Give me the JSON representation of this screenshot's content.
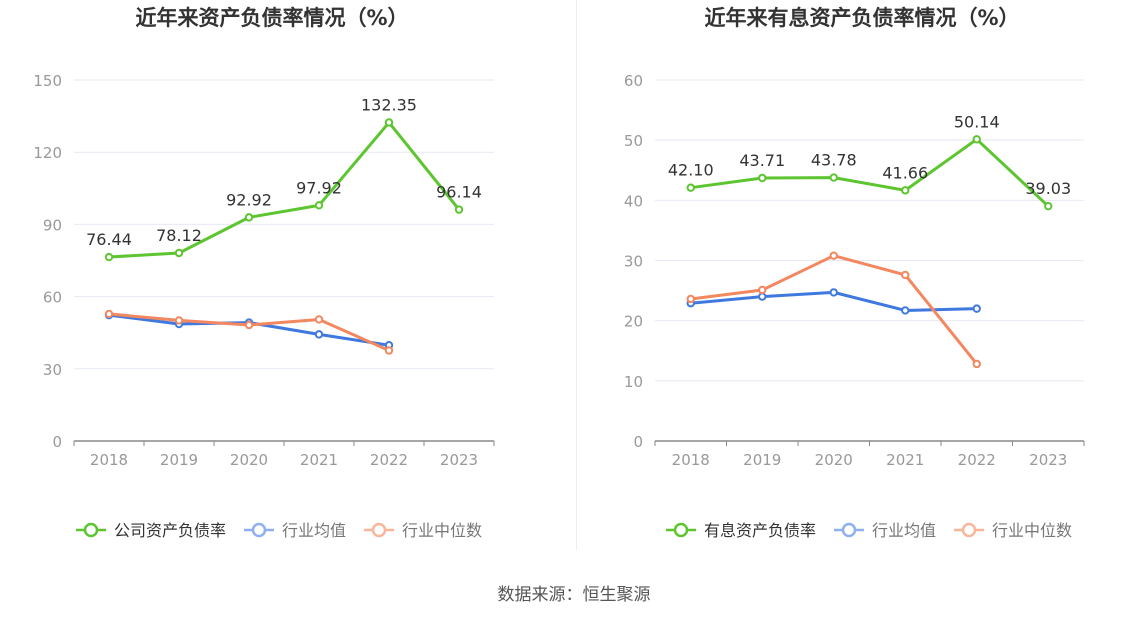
{
  "colors": {
    "company": "#5cc52f",
    "avg": "#3f79e0",
    "median": "#f3875f",
    "legend_avg": "#8fb0ef",
    "legend_median": "#f8b69b",
    "grid": "#e6e9f2",
    "axis": "#888888",
    "tick": "#999999",
    "title": "#333333"
  },
  "chart_data": [
    {
      "type": "line",
      "title": "近年来资产负债率情况（%）",
      "categories": [
        "2018",
        "2019",
        "2020",
        "2021",
        "2022",
        "2023"
      ],
      "ylim": [
        0,
        150
      ],
      "yticks": [
        0,
        30,
        60,
        90,
        120,
        150
      ],
      "grid": true,
      "legend_position": "bottom",
      "series": [
        {
          "name": "公司资产负债率",
          "role": "company",
          "values": [
            76.44,
            78.12,
            92.92,
            97.92,
            132.35,
            96.14
          ],
          "labels": [
            "76.44",
            "78.12",
            "92.92",
            "97.92",
            "132.35",
            "96.14"
          ]
        },
        {
          "name": "行业均值",
          "role": "avg",
          "values": [
            52.3,
            48.6,
            49.2,
            44.3,
            39.8,
            null
          ]
        },
        {
          "name": "行业中位数",
          "role": "median",
          "values": [
            52.8,
            50.1,
            48.2,
            50.5,
            37.6,
            null
          ]
        }
      ]
    },
    {
      "type": "line",
      "title": "近年来有息资产负债率情况（%）",
      "categories": [
        "2018",
        "2019",
        "2020",
        "2021",
        "2022",
        "2023"
      ],
      "ylim": [
        0,
        60
      ],
      "yticks": [
        0,
        10,
        20,
        30,
        40,
        50,
        60
      ],
      "grid": true,
      "legend_position": "bottom",
      "series": [
        {
          "name": "有息资产负债率",
          "role": "company",
          "values": [
            42.1,
            43.71,
            43.78,
            41.66,
            50.14,
            39.03
          ],
          "labels": [
            "42.10",
            "43.71",
            "43.78",
            "41.66",
            "50.14",
            "39.03"
          ]
        },
        {
          "name": "行业均值",
          "role": "avg",
          "values": [
            22.9,
            24.0,
            24.7,
            21.7,
            22.0,
            null
          ]
        },
        {
          "name": "行业中位数",
          "role": "median",
          "values": [
            23.6,
            25.1,
            30.8,
            27.6,
            12.8,
            null
          ]
        }
      ]
    }
  ],
  "footer": {
    "source": "数据来源：恒生聚源"
  }
}
